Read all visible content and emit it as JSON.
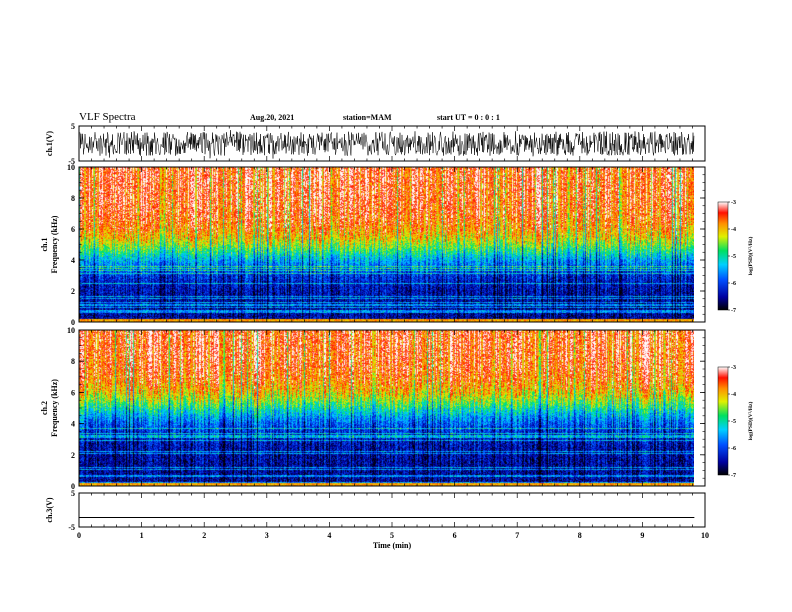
{
  "header": {
    "title": "VLF Spectra",
    "date": "Aug.20, 2021",
    "station": "station=MAM",
    "start_ut": "start  UT =  0 : 0 : 1"
  },
  "chart_data": [
    {
      "type": "line",
      "ylabel": "ch.1(V)",
      "ylim": [
        -5,
        5
      ],
      "yticks": [
        "5",
        "-5"
      ],
      "xlim": [
        0,
        10
      ],
      "description_values": "waveform noise, amplitude approx -4 to 4 V over 0 to 9.83 min",
      "x_end": 9.83
    },
    {
      "type": "heatmap",
      "ylabel_line1": "ch.1",
      "ylabel_line2": "Frequency (kHz)",
      "ylim": [
        0,
        10
      ],
      "yticks": [
        "0",
        "2",
        "4",
        "6",
        "8",
        "10"
      ],
      "xlim": [
        0,
        10
      ],
      "x_end": 9.83,
      "colorbar_label": "log(PSD)(V²/Hz)",
      "colorbar_range": [
        -7,
        -3
      ],
      "colorbar_ticks": [
        "-3",
        "-4",
        "-5",
        "-6",
        "-7"
      ],
      "color_levels": {
        "low": -6.5,
        "high": -3.4,
        "transition_kHz": 4.5
      }
    },
    {
      "type": "heatmap",
      "ylabel_line1": "ch.2",
      "ylabel_line2": "Frequency (kHz)",
      "ylim": [
        0,
        10
      ],
      "yticks": [
        "0",
        "2",
        "4",
        "6",
        "8",
        "10"
      ],
      "xlim": [
        0,
        10
      ],
      "x_end": 9.83,
      "colorbar_label": "log(PSD)(V²/Hz)",
      "colorbar_range": [
        -7,
        -3
      ],
      "colorbar_ticks": [
        "-3",
        "-4",
        "-5",
        "-6",
        "-7"
      ],
      "color_levels": {
        "low": -6.5,
        "high": -3.4,
        "transition_kHz": 5.0
      }
    },
    {
      "type": "line",
      "ylabel": "ch.3(V)",
      "ylim": [
        -5,
        5
      ],
      "yticks": [
        "5",
        "-5"
      ],
      "xlim": [
        0,
        10
      ],
      "constant_value": -2.2,
      "x_end": 9.83,
      "xlabel": "Time (min)",
      "xticks": [
        "0",
        "1",
        "2",
        "3",
        "4",
        "5",
        "6",
        "7",
        "8",
        "9",
        "10"
      ]
    }
  ]
}
